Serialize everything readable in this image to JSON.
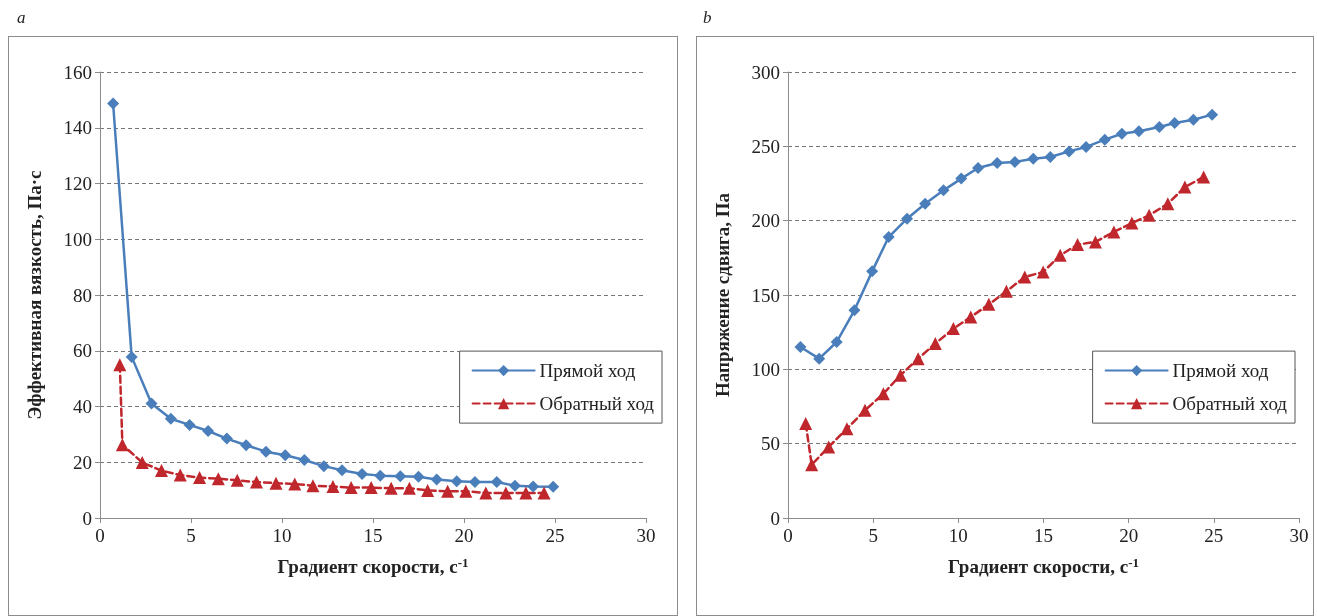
{
  "chart_data": [
    {
      "type": "line",
      "title": "a",
      "xlabel": "Градиент скорости, с$^{-1}$",
      "ylabel": "Эффективная вязкость, Па·с",
      "xlim": [
        0,
        30
      ],
      "xticks": [
        0,
        5,
        10,
        15,
        20,
        25,
        30
      ],
      "ylim": [
        0,
        160
      ],
      "yticks": [
        0,
        20,
        40,
        60,
        80,
        100,
        120,
        140,
        160
      ],
      "grid": "y",
      "legend": "right",
      "series": [
        {
          "name": "Прямой ход",
          "color": "#4a7ebb",
          "marker": "diamond",
          "line_style": "solid",
          "x": [
            0.72,
            1.74,
            2.83,
            3.89,
            4.92,
            5.94,
            6.97,
            8.03,
            9.12,
            10.18,
            11.23,
            12.3,
            13.3,
            14.4,
            15.4,
            16.5,
            17.5,
            18.5,
            19.6,
            20.6,
            21.8,
            22.8,
            23.8,
            24.9
          ],
          "values": [
            148.7,
            57.8,
            41.1,
            35.6,
            33.4,
            31.2,
            28.5,
            26.1,
            23.8,
            22.5,
            20.8,
            18.6,
            17.1,
            15.8,
            15.2,
            15.0,
            14.8,
            13.8,
            13.2,
            12.9,
            12.9,
            11.6,
            11.3,
            11.2
          ]
        },
        {
          "name": "Обратный ход",
          "color": "#c0272d",
          "marker": "triangle",
          "line_style": "dashed",
          "x": [
            1.09,
            1.23,
            2.32,
            3.38,
            4.41,
            5.47,
            6.5,
            7.54,
            8.6,
            9.67,
            10.7,
            11.7,
            12.8,
            13.8,
            14.9,
            16.0,
            17.0,
            18.0,
            19.1,
            20.1,
            21.2,
            22.3,
            23.4,
            24.4
          ],
          "values": [
            55.0,
            26.3,
            19.9,
            17.0,
            15.4,
            14.5,
            14.1,
            13.5,
            12.9,
            12.5,
            12.2,
            11.6,
            11.3,
            10.9,
            10.9,
            10.7,
            10.7,
            9.9,
            9.6,
            9.6,
            9.0,
            9.0,
            9.0,
            9.0
          ]
        }
      ]
    },
    {
      "type": "line",
      "title": "b",
      "xlabel": "Градиент скорости, с$^{-1}$",
      "ylabel": "Напряжение сдвига, Па",
      "xlim": [
        0,
        30
      ],
      "xticks": [
        0,
        5,
        10,
        15,
        20,
        25,
        30
      ],
      "ylim": [
        0,
        300
      ],
      "yticks": [
        0,
        50,
        100,
        150,
        200,
        250,
        300
      ],
      "grid": "y",
      "legend": "right",
      "series": [
        {
          "name": "Прямой ход",
          "color": "#4a7ebb",
          "marker": "diamond",
          "line_style": "solid",
          "x": [
            0.73,
            1.83,
            2.86,
            3.9,
            4.94,
            5.91,
            6.99,
            8.05,
            9.13,
            10.17,
            11.16,
            12.28,
            13.32,
            14.4,
            15.4,
            16.5,
            17.5,
            18.6,
            19.6,
            20.6,
            21.8,
            22.7,
            23.8,
            24.9
          ],
          "values": [
            115.0,
            107.2,
            118.4,
            139.7,
            165.9,
            189.0,
            201.3,
            211.4,
            220.4,
            228.3,
            235.4,
            238.8,
            239.5,
            241.7,
            242.8,
            246.6,
            249.6,
            254.5,
            258.5,
            260.1,
            263.0,
            265.7,
            267.9,
            271.3
          ]
        },
        {
          "name": "Обратный ход",
          "color": "#c0272d",
          "marker": "triangle",
          "line_style": "dashed",
          "x": [
            1.04,
            1.39,
            2.39,
            3.46,
            4.52,
            5.6,
            6.6,
            7.64,
            8.65,
            9.71,
            10.73,
            11.79,
            12.82,
            13.9,
            14.98,
            15.98,
            17.0,
            18.05,
            19.13,
            20.19,
            21.2,
            22.3,
            23.3,
            24.4
          ],
          "values": [
            63.5,
            35.9,
            47.8,
            60.1,
            72.4,
            83.6,
            96.0,
            107.2,
            117.3,
            127.4,
            135.2,
            143.7,
            152.5,
            162.1,
            165.5,
            176.7,
            183.9,
            185.7,
            192.4,
            198.4,
            203.6,
            211.4,
            222.6,
            229.4
          ]
        }
      ]
    }
  ]
}
